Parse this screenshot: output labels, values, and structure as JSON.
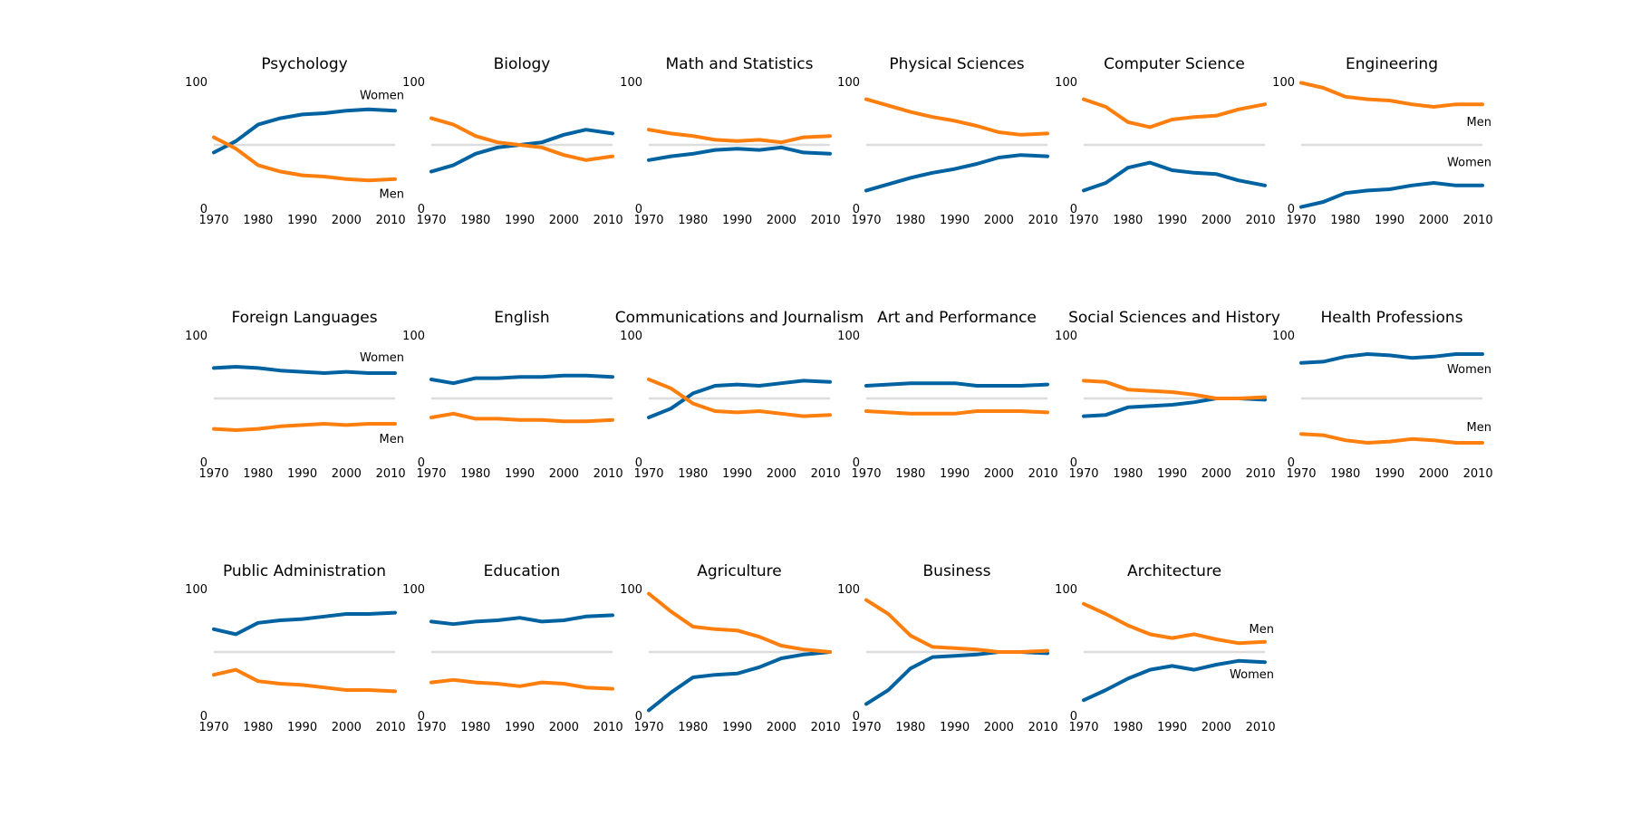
{
  "colors": {
    "women": "#0062a0",
    "men": "#ff7f0e",
    "midline": "#dddddd"
  },
  "chart_data": [
    {
      "type": "line",
      "title": "Psychology",
      "ylim": [
        0,
        100
      ],
      "x": [
        1970,
        1975,
        1980,
        1985,
        1990,
        1995,
        2000,
        2005,
        2011
      ],
      "series": [
        {
          "name": "Women",
          "values": [
            44,
            53,
            66,
            71,
            74,
            75,
            77,
            78,
            77
          ]
        },
        {
          "name": "Men",
          "values": [
            56,
            47,
            34,
            29,
            26,
            25,
            23,
            22,
            23
          ]
        }
      ],
      "legend": {
        "women": "Women",
        "men": "Men"
      },
      "legend_pos": "women-top-men-bottom"
    },
    {
      "type": "line",
      "title": "Biology",
      "ylim": [
        0,
        100
      ],
      "x": [
        1970,
        1975,
        1980,
        1985,
        1990,
        1995,
        2000,
        2005,
        2011
      ],
      "series": [
        {
          "name": "Women",
          "values": [
            29,
            34,
            43,
            48,
            50,
            52,
            58,
            62,
            59
          ]
        },
        {
          "name": "Men",
          "values": [
            71,
            66,
            57,
            52,
            50,
            48,
            42,
            38,
            41
          ]
        }
      ]
    },
    {
      "type": "line",
      "title": "Math and Statistics",
      "ylim": [
        0,
        100
      ],
      "x": [
        1970,
        1975,
        1980,
        1985,
        1990,
        1995,
        2000,
        2005,
        2011
      ],
      "series": [
        {
          "name": "Women",
          "values": [
            38,
            41,
            43,
            46,
            47,
            46,
            48,
            44,
            43
          ]
        },
        {
          "name": "Men",
          "values": [
            62,
            59,
            57,
            54,
            53,
            54,
            52,
            56,
            57
          ]
        }
      ]
    },
    {
      "type": "line",
      "title": "Physical Sciences",
      "ylim": [
        0,
        100
      ],
      "x": [
        1970,
        1975,
        1980,
        1985,
        1990,
        1995,
        2000,
        2005,
        2011
      ],
      "series": [
        {
          "name": "Women",
          "values": [
            14,
            19,
            24,
            28,
            31,
            35,
            40,
            42,
            41
          ]
        },
        {
          "name": "Men",
          "values": [
            86,
            81,
            76,
            72,
            69,
            65,
            60,
            58,
            59
          ]
        }
      ]
    },
    {
      "type": "line",
      "title": "Computer Science",
      "ylim": [
        0,
        100
      ],
      "x": [
        1970,
        1975,
        1980,
        1985,
        1990,
        1995,
        2000,
        2005,
        2011
      ],
      "series": [
        {
          "name": "Women",
          "values": [
            14,
            20,
            32,
            36,
            30,
            28,
            27,
            22,
            18
          ]
        },
        {
          "name": "Men",
          "values": [
            86,
            80,
            68,
            64,
            70,
            72,
            73,
            78,
            82
          ]
        }
      ]
    },
    {
      "type": "line",
      "title": "Engineering",
      "ylim": [
        0,
        100
      ],
      "x": [
        1970,
        1975,
        1980,
        1985,
        1990,
        1995,
        2000,
        2005,
        2011
      ],
      "series": [
        {
          "name": "Women",
          "values": [
            1,
            5,
            12,
            14,
            15,
            18,
            20,
            18,
            18
          ]
        },
        {
          "name": "Men",
          "values": [
            99,
            95,
            88,
            86,
            85,
            82,
            80,
            82,
            82
          ]
        }
      ],
      "legend": {
        "women": "Women",
        "men": "Men"
      },
      "legend_pos": "men-top-women-bottom"
    },
    {
      "type": "line",
      "title": "Foreign Languages",
      "ylim": [
        0,
        100
      ],
      "x": [
        1970,
        1975,
        1980,
        1985,
        1990,
        1995,
        2000,
        2005,
        2011
      ],
      "series": [
        {
          "name": "Women",
          "values": [
            74,
            75,
            74,
            72,
            71,
            70,
            71,
            70,
            70
          ]
        },
        {
          "name": "Men",
          "values": [
            26,
            25,
            26,
            28,
            29,
            30,
            29,
            30,
            30
          ]
        }
      ],
      "legend": {
        "women": "Women",
        "men": "Men"
      },
      "legend_pos": "women-top-men-bottom"
    },
    {
      "type": "line",
      "title": "English",
      "ylim": [
        0,
        100
      ],
      "x": [
        1970,
        1975,
        1980,
        1985,
        1990,
        1995,
        2000,
        2005,
        2011
      ],
      "series": [
        {
          "name": "Women",
          "values": [
            65,
            62,
            66,
            66,
            67,
            67,
            68,
            68,
            67
          ]
        },
        {
          "name": "Men",
          "values": [
            35,
            38,
            34,
            34,
            33,
            33,
            32,
            32,
            33
          ]
        }
      ]
    },
    {
      "type": "line",
      "title": "Communications and Journalism",
      "ylim": [
        0,
        100
      ],
      "x": [
        1970,
        1975,
        1980,
        1985,
        1990,
        1995,
        2000,
        2005,
        2011
      ],
      "series": [
        {
          "name": "Women",
          "values": [
            35,
            42,
            54,
            60,
            61,
            60,
            62,
            64,
            63
          ]
        },
        {
          "name": "Men",
          "values": [
            65,
            58,
            46,
            40,
            39,
            40,
            38,
            36,
            37
          ]
        }
      ]
    },
    {
      "type": "line",
      "title": "Art and Performance",
      "ylim": [
        0,
        100
      ],
      "x": [
        1970,
        1975,
        1980,
        1985,
        1990,
        1995,
        2000,
        2005,
        2011
      ],
      "series": [
        {
          "name": "Women",
          "values": [
            60,
            61,
            62,
            62,
            62,
            60,
            60,
            60,
            61
          ]
        },
        {
          "name": "Men",
          "values": [
            40,
            39,
            38,
            38,
            38,
            40,
            40,
            40,
            39
          ]
        }
      ]
    },
    {
      "type": "line",
      "title": "Social Sciences and History",
      "ylim": [
        0,
        100
      ],
      "x": [
        1970,
        1975,
        1980,
        1985,
        1990,
        1995,
        2000,
        2005,
        2011
      ],
      "series": [
        {
          "name": "Women",
          "values": [
            36,
            37,
            43,
            44,
            45,
            47,
            50,
            50,
            49
          ]
        },
        {
          "name": "Men",
          "values": [
            64,
            63,
            57,
            56,
            55,
            53,
            50,
            50,
            51
          ]
        }
      ]
    },
    {
      "type": "line",
      "title": "Health Professions",
      "ylim": [
        0,
        100
      ],
      "x": [
        1970,
        1975,
        1980,
        1985,
        1990,
        1995,
        2000,
        2005,
        2011
      ],
      "series": [
        {
          "name": "Women",
          "values": [
            78,
            79,
            83,
            85,
            84,
            82,
            83,
            85,
            85
          ]
        },
        {
          "name": "Men",
          "values": [
            22,
            21,
            17,
            15,
            16,
            18,
            17,
            15,
            15
          ]
        }
      ],
      "legend": {
        "women": "Women",
        "men": "Men"
      },
      "legend_pos": "women-top-men-bottom"
    },
    {
      "type": "line",
      "title": "Public Administration",
      "ylim": [
        0,
        100
      ],
      "x": [
        1970,
        1975,
        1980,
        1985,
        1990,
        1995,
        2000,
        2005,
        2011
      ],
      "series": [
        {
          "name": "Women",
          "values": [
            68,
            64,
            73,
            75,
            76,
            78,
            80,
            80,
            81
          ]
        },
        {
          "name": "Men",
          "values": [
            32,
            36,
            27,
            25,
            24,
            22,
            20,
            20,
            19
          ]
        }
      ]
    },
    {
      "type": "line",
      "title": "Education",
      "ylim": [
        0,
        100
      ],
      "x": [
        1970,
        1975,
        1980,
        1985,
        1990,
        1995,
        2000,
        2005,
        2011
      ],
      "series": [
        {
          "name": "Women",
          "values": [
            74,
            72,
            74,
            75,
            77,
            74,
            75,
            78,
            79
          ]
        },
        {
          "name": "Men",
          "values": [
            26,
            28,
            26,
            25,
            23,
            26,
            25,
            22,
            21
          ]
        }
      ]
    },
    {
      "type": "line",
      "title": "Agriculture",
      "ylim": [
        0,
        100
      ],
      "x": [
        1970,
        1975,
        1980,
        1985,
        1990,
        1995,
        2000,
        2005,
        2011
      ],
      "series": [
        {
          "name": "Women",
          "values": [
            4,
            18,
            30,
            32,
            33,
            38,
            45,
            48,
            50
          ]
        },
        {
          "name": "Men",
          "values": [
            96,
            82,
            70,
            68,
            67,
            62,
            55,
            52,
            50
          ]
        }
      ]
    },
    {
      "type": "line",
      "title": "Business",
      "ylim": [
        0,
        100
      ],
      "x": [
        1970,
        1975,
        1980,
        1985,
        1990,
        1995,
        2000,
        2005,
        2011
      ],
      "series": [
        {
          "name": "Women",
          "values": [
            9,
            20,
            37,
            46,
            47,
            48,
            50,
            50,
            49
          ]
        },
        {
          "name": "Men",
          "values": [
            91,
            80,
            63,
            54,
            53,
            52,
            50,
            50,
            51
          ]
        }
      ]
    },
    {
      "type": "line",
      "title": "Architecture",
      "ylim": [
        0,
        100
      ],
      "x": [
        1970,
        1975,
        1980,
        1985,
        1990,
        1995,
        2000,
        2005,
        2011
      ],
      "series": [
        {
          "name": "Women",
          "values": [
            12,
            20,
            29,
            36,
            39,
            36,
            40,
            43,
            42
          ]
        },
        {
          "name": "Men",
          "values": [
            88,
            80,
            71,
            64,
            61,
            64,
            60,
            57,
            58
          ]
        }
      ],
      "legend": {
        "women": "Women",
        "men": "Men"
      },
      "legend_pos": "men-top-women-bottom"
    }
  ]
}
